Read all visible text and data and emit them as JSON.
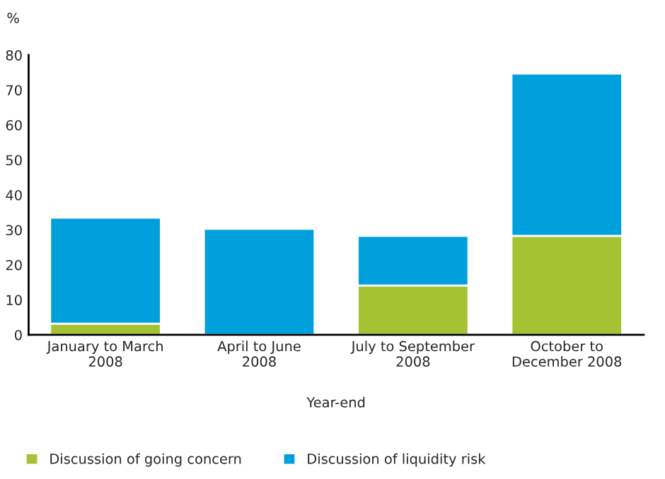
{
  "chart_data": {
    "type": "bar",
    "stacked": true,
    "ylabel": "%",
    "xlabel": "Year-end",
    "categories": [
      "January to March\n2008",
      "April to June\n2008",
      "July to September\n2008",
      "October to\nDecember 2008"
    ],
    "series": [
      {
        "name": "Discussion of going concern",
        "color": "#a5c232",
        "values": [
          3.2,
          0,
          14.1,
          28.3
        ]
      },
      {
        "name": "Discussion of liquidity risk",
        "color": "#00a0dc",
        "values": [
          30.3,
          30.3,
          14.2,
          46.4
        ]
      }
    ],
    "ylim": [
      0,
      80
    ],
    "yticks": [
      0,
      10,
      20,
      30,
      40,
      50,
      60,
      70,
      80
    ],
    "grid": false,
    "legend": "bottom"
  }
}
